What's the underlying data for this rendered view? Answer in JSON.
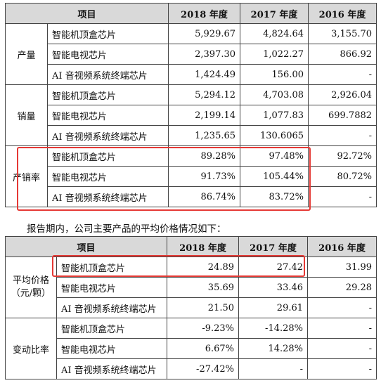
{
  "table1": {
    "headers": [
      "项目",
      "2018 年度",
      "2017 年度",
      "2016 年度"
    ],
    "groups": [
      {
        "metric": "产量",
        "rows": [
          {
            "product": "智能机顶盒芯片",
            "y2018": "5,929.67",
            "y2017": "4,824.64",
            "y2016": "3,155.70"
          },
          {
            "product": "智能电视芯片",
            "y2018": "2,397.30",
            "y2017": "1,022.27",
            "y2016": "866.92"
          },
          {
            "product": "AI 音视频系统终端芯片",
            "y2018": "1,424.49",
            "y2017": "156.00",
            "y2016": "-"
          }
        ]
      },
      {
        "metric": "销量",
        "rows": [
          {
            "product": "智能机顶盒芯片",
            "y2018": "5,294.12",
            "y2017": "4,703.08",
            "y2016": "2,926.04"
          },
          {
            "product": "智能电视芯片",
            "y2018": "2,199.14",
            "y2017": "1,077.83",
            "y2016": "699.7882"
          },
          {
            "product": "AI 音视频系统终端芯片",
            "y2018": "1,235.65",
            "y2017": "130.6065",
            "y2016": "-"
          }
        ]
      },
      {
        "metric": "产销率",
        "rows": [
          {
            "product": "智能机顶盒芯片",
            "y2018": "89.28%",
            "y2017": "97.48%",
            "y2016": "92.72%"
          },
          {
            "product": "智能电视芯片",
            "y2018": "91.73%",
            "y2017": "105.44%",
            "y2016": "80.72%"
          },
          {
            "product": "AI 音视频系统终端芯片",
            "y2018": "86.74%",
            "y2017": "83.72%",
            "y2016": "-"
          }
        ]
      }
    ]
  },
  "sentence": "报告期内，公司主要产品的平均价格情况如下：",
  "table2": {
    "headers": [
      "项目",
      "2018 年度",
      "2017 年度",
      "2016 年度"
    ],
    "groups": [
      {
        "metric_line1": "平均价格",
        "metric_line2": "（元/颗）",
        "rows": [
          {
            "product": "智能机顶盒芯片",
            "y2018": "24.89",
            "y2017": "27.42",
            "y2016": "31.99"
          },
          {
            "product": "智能电视芯片",
            "y2018": "35.69",
            "y2017": "33.46",
            "y2016": "29.28"
          },
          {
            "product": "AI 音视频系统终端芯片",
            "y2018": "21.50",
            "y2017": "29.61",
            "y2016": "-"
          }
        ]
      },
      {
        "metric_line1": "变动比率",
        "metric_line2": "",
        "rows": [
          {
            "product": "智能机顶盒芯片",
            "y2018": "-9.23%",
            "y2017": "-14.28%",
            "y2016": "-"
          },
          {
            "product": "智能电视芯片",
            "y2018": "6.67%",
            "y2017": "14.28%",
            "y2016": "-"
          },
          {
            "product": "AI 音视频系统终端芯片",
            "y2018": "-27.42%",
            "y2017": "-",
            "y2016": "-"
          }
        ]
      }
    ]
  },
  "highlight_color": "#e53935",
  "header_bg": "#d9d9d9"
}
